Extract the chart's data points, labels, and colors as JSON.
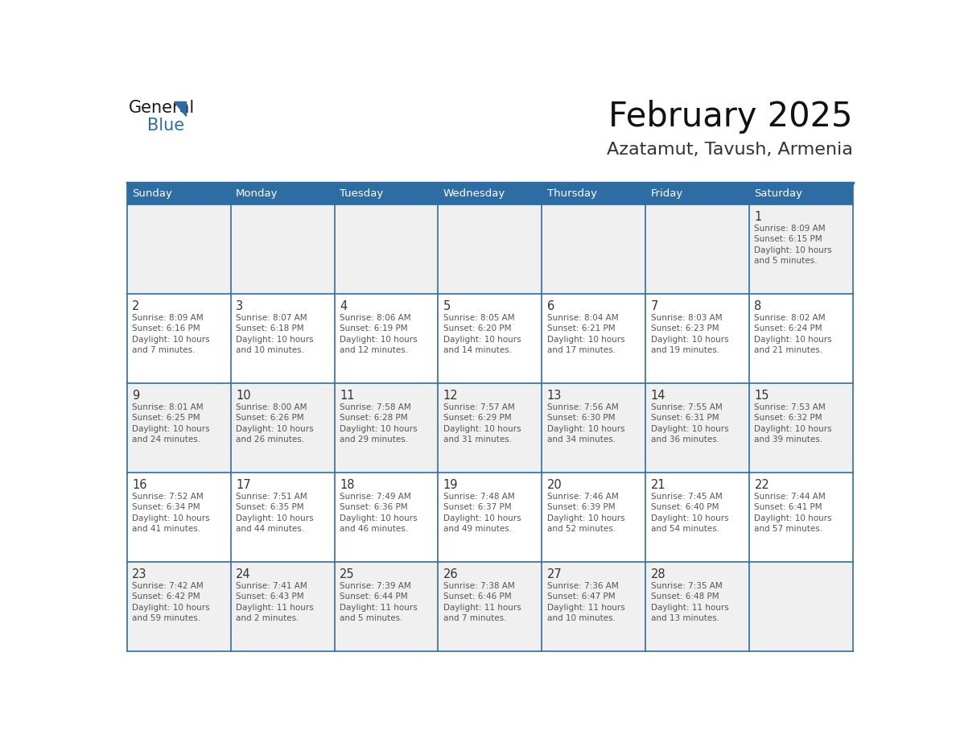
{
  "title": "February 2025",
  "subtitle": "Azatamut, Tavush, Armenia",
  "header_color": "#2E6DA4",
  "header_text_color": "#FFFFFF",
  "cell_bg_even": "#FFFFFF",
  "cell_bg_odd": "#F0F0F0",
  "border_color": "#2E6DA4",
  "text_color_date": "#333333",
  "text_color_info": "#555555",
  "day_names": [
    "Sunday",
    "Monday",
    "Tuesday",
    "Wednesday",
    "Thursday",
    "Friday",
    "Saturday"
  ],
  "days": [
    {
      "date": 1,
      "col": 6,
      "row": 0,
      "sunrise": "8:09 AM",
      "sunset": "6:15 PM",
      "daylight_h": "10 hours",
      "daylight_m": "and 5 minutes."
    },
    {
      "date": 2,
      "col": 0,
      "row": 1,
      "sunrise": "8:09 AM",
      "sunset": "6:16 PM",
      "daylight_h": "10 hours",
      "daylight_m": "and 7 minutes."
    },
    {
      "date": 3,
      "col": 1,
      "row": 1,
      "sunrise": "8:07 AM",
      "sunset": "6:18 PM",
      "daylight_h": "10 hours",
      "daylight_m": "and 10 minutes."
    },
    {
      "date": 4,
      "col": 2,
      "row": 1,
      "sunrise": "8:06 AM",
      "sunset": "6:19 PM",
      "daylight_h": "10 hours",
      "daylight_m": "and 12 minutes."
    },
    {
      "date": 5,
      "col": 3,
      "row": 1,
      "sunrise": "8:05 AM",
      "sunset": "6:20 PM",
      "daylight_h": "10 hours",
      "daylight_m": "and 14 minutes."
    },
    {
      "date": 6,
      "col": 4,
      "row": 1,
      "sunrise": "8:04 AM",
      "sunset": "6:21 PM",
      "daylight_h": "10 hours",
      "daylight_m": "and 17 minutes."
    },
    {
      "date": 7,
      "col": 5,
      "row": 1,
      "sunrise": "8:03 AM",
      "sunset": "6:23 PM",
      "daylight_h": "10 hours",
      "daylight_m": "and 19 minutes."
    },
    {
      "date": 8,
      "col": 6,
      "row": 1,
      "sunrise": "8:02 AM",
      "sunset": "6:24 PM",
      "daylight_h": "10 hours",
      "daylight_m": "and 21 minutes."
    },
    {
      "date": 9,
      "col": 0,
      "row": 2,
      "sunrise": "8:01 AM",
      "sunset": "6:25 PM",
      "daylight_h": "10 hours",
      "daylight_m": "and 24 minutes."
    },
    {
      "date": 10,
      "col": 1,
      "row": 2,
      "sunrise": "8:00 AM",
      "sunset": "6:26 PM",
      "daylight_h": "10 hours",
      "daylight_m": "and 26 minutes."
    },
    {
      "date": 11,
      "col": 2,
      "row": 2,
      "sunrise": "7:58 AM",
      "sunset": "6:28 PM",
      "daylight_h": "10 hours",
      "daylight_m": "and 29 minutes."
    },
    {
      "date": 12,
      "col": 3,
      "row": 2,
      "sunrise": "7:57 AM",
      "sunset": "6:29 PM",
      "daylight_h": "10 hours",
      "daylight_m": "and 31 minutes."
    },
    {
      "date": 13,
      "col": 4,
      "row": 2,
      "sunrise": "7:56 AM",
      "sunset": "6:30 PM",
      "daylight_h": "10 hours",
      "daylight_m": "and 34 minutes."
    },
    {
      "date": 14,
      "col": 5,
      "row": 2,
      "sunrise": "7:55 AM",
      "sunset": "6:31 PM",
      "daylight_h": "10 hours",
      "daylight_m": "and 36 minutes."
    },
    {
      "date": 15,
      "col": 6,
      "row": 2,
      "sunrise": "7:53 AM",
      "sunset": "6:32 PM",
      "daylight_h": "10 hours",
      "daylight_m": "and 39 minutes."
    },
    {
      "date": 16,
      "col": 0,
      "row": 3,
      "sunrise": "7:52 AM",
      "sunset": "6:34 PM",
      "daylight_h": "10 hours",
      "daylight_m": "and 41 minutes."
    },
    {
      "date": 17,
      "col": 1,
      "row": 3,
      "sunrise": "7:51 AM",
      "sunset": "6:35 PM",
      "daylight_h": "10 hours",
      "daylight_m": "and 44 minutes."
    },
    {
      "date": 18,
      "col": 2,
      "row": 3,
      "sunrise": "7:49 AM",
      "sunset": "6:36 PM",
      "daylight_h": "10 hours",
      "daylight_m": "and 46 minutes."
    },
    {
      "date": 19,
      "col": 3,
      "row": 3,
      "sunrise": "7:48 AM",
      "sunset": "6:37 PM",
      "daylight_h": "10 hours",
      "daylight_m": "and 49 minutes."
    },
    {
      "date": 20,
      "col": 4,
      "row": 3,
      "sunrise": "7:46 AM",
      "sunset": "6:39 PM",
      "daylight_h": "10 hours",
      "daylight_m": "and 52 minutes."
    },
    {
      "date": 21,
      "col": 5,
      "row": 3,
      "sunrise": "7:45 AM",
      "sunset": "6:40 PM",
      "daylight_h": "10 hours",
      "daylight_m": "and 54 minutes."
    },
    {
      "date": 22,
      "col": 6,
      "row": 3,
      "sunrise": "7:44 AM",
      "sunset": "6:41 PM",
      "daylight_h": "10 hours",
      "daylight_m": "and 57 minutes."
    },
    {
      "date": 23,
      "col": 0,
      "row": 4,
      "sunrise": "7:42 AM",
      "sunset": "6:42 PM",
      "daylight_h": "10 hours",
      "daylight_m": "and 59 minutes."
    },
    {
      "date": 24,
      "col": 1,
      "row": 4,
      "sunrise": "7:41 AM",
      "sunset": "6:43 PM",
      "daylight_h": "11 hours",
      "daylight_m": "and 2 minutes."
    },
    {
      "date": 25,
      "col": 2,
      "row": 4,
      "sunrise": "7:39 AM",
      "sunset": "6:44 PM",
      "daylight_h": "11 hours",
      "daylight_m": "and 5 minutes."
    },
    {
      "date": 26,
      "col": 3,
      "row": 4,
      "sunrise": "7:38 AM",
      "sunset": "6:46 PM",
      "daylight_h": "11 hours",
      "daylight_m": "and 7 minutes."
    },
    {
      "date": 27,
      "col": 4,
      "row": 4,
      "sunrise": "7:36 AM",
      "sunset": "6:47 PM",
      "daylight_h": "11 hours",
      "daylight_m": "and 10 minutes."
    },
    {
      "date": 28,
      "col": 5,
      "row": 4,
      "sunrise": "7:35 AM",
      "sunset": "6:48 PM",
      "daylight_h": "11 hours",
      "daylight_m": "and 13 minutes."
    }
  ],
  "num_rows": 5,
  "num_cols": 7
}
